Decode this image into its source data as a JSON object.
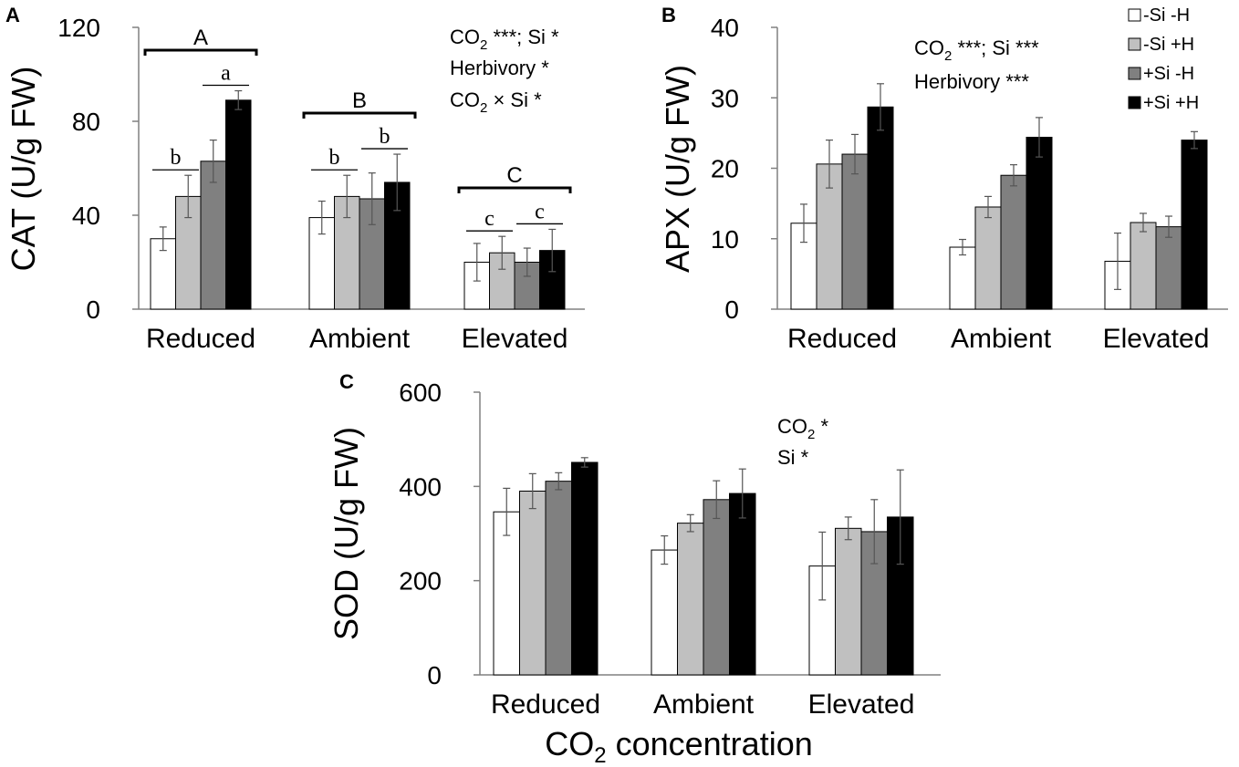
{
  "chart_data": [
    {
      "panel": "A",
      "type": "bar",
      "ylabel": "CAT (U/g FW)",
      "ylim": [
        0,
        120
      ],
      "yticks": [
        "0",
        "40",
        "80",
        "120"
      ],
      "categories": [
        "Reduced",
        "Ambient",
        "Elevated"
      ],
      "series": [
        {
          "name": "-Si -H",
          "values": [
            30,
            39,
            20
          ],
          "errors": [
            5,
            7,
            8
          ]
        },
        {
          "name": "-Si +H",
          "values": [
            48,
            48,
            24
          ],
          "errors": [
            9,
            9,
            7
          ]
        },
        {
          "name": "+Si -H",
          "values": [
            63,
            47,
            20
          ],
          "errors": [
            9,
            11,
            6
          ]
        },
        {
          "name": "+Si +H",
          "values": [
            89,
            54,
            25
          ],
          "errors": [
            4,
            12,
            9
          ]
        }
      ],
      "stats": [
        "CO2 ***; Si *",
        "Herbivory *",
        "CO2 × Si *"
      ],
      "group_letters": [
        "A",
        "B",
        "C"
      ],
      "pair_letters": [
        [
          "b",
          "a"
        ],
        [
          "b",
          "b"
        ],
        [
          "c",
          "c"
        ]
      ]
    },
    {
      "panel": "B",
      "type": "bar",
      "ylabel": "APX (U/g FW)",
      "ylim": [
        0,
        40
      ],
      "yticks": [
        "0",
        "10",
        "20",
        "30",
        "40"
      ],
      "categories": [
        "Reduced",
        "Ambient",
        "Elevated"
      ],
      "series": [
        {
          "name": "-Si -H",
          "values": [
            12.2,
            8.8,
            6.8
          ],
          "errors": [
            2.7,
            1.1,
            4.0
          ]
        },
        {
          "name": "-Si +H",
          "values": [
            20.6,
            14.5,
            12.3
          ],
          "errors": [
            3.4,
            1.5,
            1.3
          ]
        },
        {
          "name": "+Si -H",
          "values": [
            22.0,
            19.0,
            11.7
          ],
          "errors": [
            2.8,
            1.5,
            1.5
          ]
        },
        {
          "name": "+Si +H",
          "values": [
            28.7,
            24.4,
            24.0
          ],
          "errors": [
            3.3,
            2.8,
            1.2
          ]
        }
      ],
      "stats": [
        "CO2 ***; Si ***",
        "Herbivory ***"
      ]
    },
    {
      "panel": "C",
      "type": "bar",
      "ylabel": "SOD (U/g FW)",
      "xlabel": "CO2 concentration",
      "ylim": [
        0,
        600
      ],
      "yticks": [
        "0",
        "200",
        "400",
        "600"
      ],
      "categories": [
        "Reduced",
        "Ambient",
        "Elevated"
      ],
      "series": [
        {
          "name": "-Si -H",
          "values": [
            346,
            265,
            231
          ],
          "errors": [
            50,
            30,
            72
          ]
        },
        {
          "name": "-Si +H",
          "values": [
            390,
            322,
            311
          ],
          "errors": [
            37,
            18,
            24
          ]
        },
        {
          "name": "+Si -H",
          "values": [
            411,
            372,
            304
          ],
          "errors": [
            18,
            40,
            68
          ]
        },
        {
          "name": "+Si +H",
          "values": [
            451,
            385,
            335
          ],
          "errors": [
            10,
            52,
            100
          ]
        }
      ],
      "stats": [
        "CO2 *",
        "Si *"
      ]
    }
  ],
  "legend": [
    {
      "label": "-Si -H",
      "color": "#ffffff"
    },
    {
      "label": "-Si +H",
      "color": "#c0c0c0"
    },
    {
      "label": "+Si -H",
      "color": "#808080"
    },
    {
      "label": "+Si +H",
      "color": "#000000"
    }
  ],
  "colors": [
    "#ffffff",
    "#c0c0c0",
    "#808080",
    "#000000"
  ],
  "labels": {
    "panelA": "A",
    "panelB": "B",
    "panelC": "C",
    "yA": "CAT (U/g FW)",
    "yB": "APX (U/g FW)",
    "yC": "SOD (U/g FW)",
    "xlabel_main": "CO",
    "xlabel_sub": "2",
    "xlabel_rest": " concentration",
    "statA1_pre": "CO",
    "statA1_sub": "2",
    "statA1_post": " ***; Si *",
    "statA2": "Herbivory *",
    "statA3_pre": "CO",
    "statA3_sub": "2",
    "statA3_post": " × Si *",
    "statB1_pre": "CO",
    "statB1_sub": "2",
    "statB1_post": " ***; Si ***",
    "statB2": "Herbivory ***",
    "statC1_pre": "CO",
    "statC1_sub": "2",
    "statC1_post": " *",
    "statC2": "Si *"
  }
}
